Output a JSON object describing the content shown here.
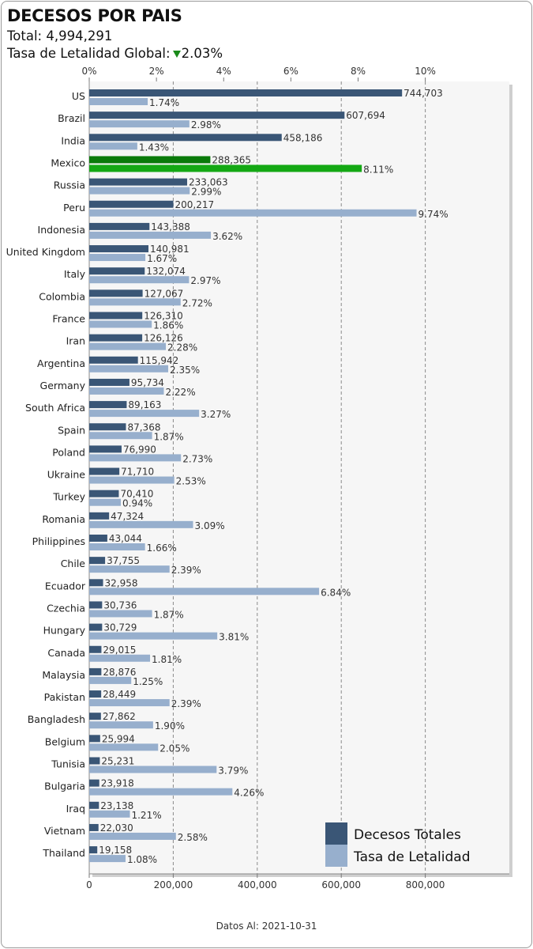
{
  "header": {
    "title": "DECESOS POR PAIS",
    "total_label": "Total:",
    "total_value": "4,994,291",
    "rate_label": "Tasa de Letalidad Global:",
    "rate_value": "2.03%"
  },
  "footer": {
    "date_label": "Datos Al:",
    "date_value": "2021-10-31"
  },
  "colors": {
    "deaths": "#3a5676",
    "rate": "#97afcd",
    "highlight_deaths": "#0a7a0a",
    "highlight_rate": "#14a814",
    "trend_down": "#1a8a1a"
  },
  "chart_data": {
    "type": "bar",
    "orientation": "horizontal",
    "highlight_category": "Mexico",
    "categories": [
      "US",
      "Brazil",
      "India",
      "Mexico",
      "Russia",
      "Peru",
      "Indonesia",
      "United Kingdom",
      "Italy",
      "Colombia",
      "France",
      "Iran",
      "Argentina",
      "Germany",
      "South Africa",
      "Spain",
      "Poland",
      "Ukraine",
      "Turkey",
      "Romania",
      "Philippines",
      "Chile",
      "Ecuador",
      "Czechia",
      "Hungary",
      "Canada",
      "Malaysia",
      "Pakistan",
      "Bangladesh",
      "Belgium",
      "Tunisia",
      "Bulgaria",
      "Iraq",
      "Vietnam",
      "Thailand"
    ],
    "series": [
      {
        "name": "Decesos Totales",
        "axis": "bottom",
        "values": [
          744703,
          607694,
          458186,
          288365,
          233063,
          200217,
          143388,
          140981,
          132074,
          127067,
          126310,
          126126,
          115942,
          95734,
          89163,
          87368,
          76990,
          71710,
          70410,
          47324,
          43044,
          37755,
          32958,
          30736,
          30729,
          29015,
          28876,
          28449,
          27862,
          25994,
          25231,
          23918,
          23138,
          22030,
          19158
        ],
        "labels": [
          "744,703",
          "607,694",
          "458,186",
          "288,365",
          "233,063",
          "200,217",
          "143,388",
          "140,981",
          "132,074",
          "127,067",
          "126,310",
          "126,126",
          "115,942",
          "95,734",
          "89,163",
          "87,368",
          "76,990",
          "71,710",
          "70,410",
          "47,324",
          "43,044",
          "37,755",
          "32,958",
          "30,736",
          "30,729",
          "29,015",
          "28,876",
          "28,449",
          "27,862",
          "25,994",
          "25,231",
          "23,918",
          "23,138",
          "22,030",
          "19,158"
        ]
      },
      {
        "name": "Tasa de Letalidad",
        "axis": "top",
        "values": [
          1.74,
          2.98,
          1.43,
          8.11,
          2.99,
          9.74,
          3.62,
          1.67,
          2.97,
          2.72,
          1.86,
          2.28,
          2.35,
          2.22,
          3.27,
          1.87,
          2.73,
          2.53,
          0.94,
          3.09,
          1.66,
          2.39,
          6.84,
          1.87,
          3.81,
          1.81,
          1.25,
          2.39,
          1.9,
          2.05,
          3.79,
          4.26,
          1.21,
          2.58,
          1.08
        ],
        "labels": [
          "1.74%",
          "2.98%",
          "1.43%",
          "8.11%",
          "2.99%",
          "9.74%",
          "3.62%",
          "1.67%",
          "2.97%",
          "2.72%",
          "1.86%",
          "2.28%",
          "2.35%",
          "2.22%",
          "3.27%",
          "1.87%",
          "2.73%",
          "2.53%",
          "0.94%",
          "3.09%",
          "1.66%",
          "2.39%",
          "6.84%",
          "1.87%",
          "3.81%",
          "1.81%",
          "1.25%",
          "2.39%",
          "1.90%",
          "2.05%",
          "3.79%",
          "4.26%",
          "1.21%",
          "2.58%",
          "1.08%"
        ]
      }
    ],
    "x_bottom": {
      "ticks": [
        0,
        200000,
        400000,
        600000,
        800000
      ],
      "tick_labels": [
        "0",
        "200,000",
        "400,000",
        "600,000",
        "800,000"
      ],
      "range": [
        0,
        1000000
      ]
    },
    "x_top": {
      "ticks": [
        0,
        2,
        4,
        6,
        8,
        10
      ],
      "tick_labels": [
        "0%",
        "2%",
        "4%",
        "6%",
        "8%",
        "10%"
      ],
      "range": [
        0,
        12.5
      ]
    },
    "grid": "vertical dashed at bottom-axis ticks",
    "legend_position": "bottom-right"
  }
}
